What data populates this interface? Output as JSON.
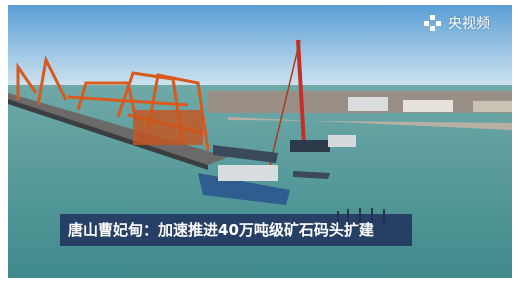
{
  "logo": {
    "text": "央视频"
  },
  "caption": {
    "text": "唐山曹妃甸：加速推进40万吨级矿石码头扩建"
  }
}
